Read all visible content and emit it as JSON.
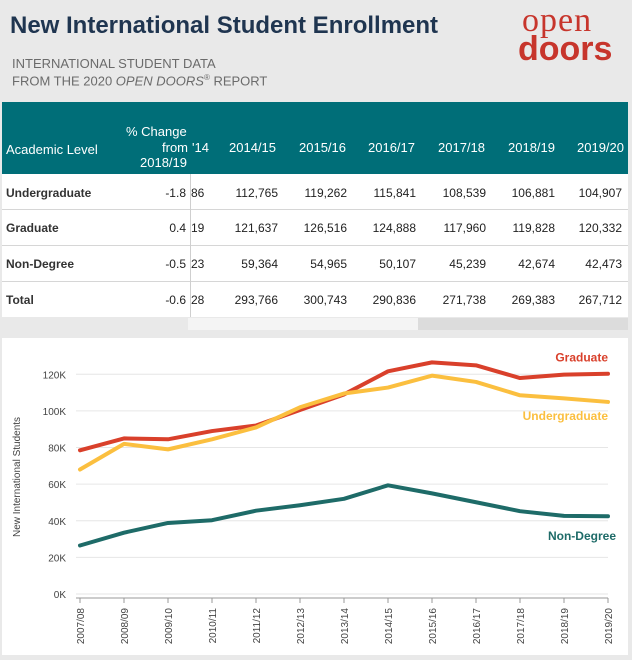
{
  "header": {
    "title": "New International Student Enrollment",
    "subtitle_line1": "INTERNATIONAL STUDENT DATA",
    "subtitle_line2_prefix": "FROM THE 2020 ",
    "subtitle_line2_italic": "OPEN DOORS",
    "subtitle_line2_reg": "®",
    "subtitle_line2_suffix": " REPORT",
    "logo_top": "open",
    "logo_bottom": "doors"
  },
  "table": {
    "col_academic": "Academic Level",
    "col_change_1": "% Change",
    "col_change_2": "from",
    "col_change_3": "2018/19",
    "col_partial": "'14",
    "years": [
      "2014/15",
      "2015/16",
      "2016/17",
      "2017/18",
      "2018/19",
      "2019/20"
    ],
    "rows": [
      {
        "label": "Undergraduate",
        "change": "-1.8",
        "partial": "86",
        "values": [
          "112,765",
          "119,262",
          "115,841",
          "108,539",
          "106,881",
          "104,907"
        ]
      },
      {
        "label": "Graduate",
        "change": "0.4",
        "partial": "19",
        "values": [
          "121,637",
          "126,516",
          "124,888",
          "117,960",
          "119,828",
          "120,332"
        ]
      },
      {
        "label": "Non-Degree",
        "change": "-0.5",
        "partial": "23",
        "values": [
          "59,364",
          "54,965",
          "50,107",
          "45,239",
          "42,674",
          "42,473"
        ]
      },
      {
        "label": "Total",
        "change": "-0.6",
        "partial": "28",
        "values": [
          "293,766",
          "300,743",
          "290,836",
          "271,738",
          "269,383",
          "267,712"
        ]
      }
    ]
  },
  "colors": {
    "graduate": "#d9402b",
    "undergraduate": "#fbbf3f",
    "nondegree": "#1e6b68",
    "header_bg": "#006e78",
    "title": "#1f3550",
    "logo": "#c7352c"
  },
  "chart_data": {
    "type": "line",
    "ylabel": "New International Students",
    "xlabel": "",
    "ylim": [
      0,
      130000
    ],
    "yticks": [
      0,
      20000,
      40000,
      60000,
      80000,
      100000,
      120000
    ],
    "ytick_labels": [
      "0K",
      "20K",
      "40K",
      "60K",
      "80K",
      "100K",
      "120K"
    ],
    "categories": [
      "2007/08",
      "2008/09",
      "2009/10",
      "2010/11",
      "2011/12",
      "2012/13",
      "2013/14",
      "2014/15",
      "2015/16",
      "2016/17",
      "2017/18",
      "2018/19",
      "2019/20"
    ],
    "series": [
      {
        "name": "Graduate",
        "key": "graduate",
        "values": [
          78500,
          85000,
          84500,
          89000,
          92000,
          100500,
          109000,
          121637,
          126516,
          124888,
          117960,
          119828,
          120332
        ]
      },
      {
        "name": "Undergraduate",
        "key": "undergraduate",
        "values": [
          68000,
          82000,
          79000,
          84500,
          91000,
          102000,
          109500,
          112765,
          119262,
          115841,
          108539,
          106881,
          104907
        ]
      },
      {
        "name": "Non-Degree",
        "key": "nondegree",
        "values": [
          26500,
          33500,
          38800,
          40300,
          45500,
          48500,
          52000,
          59364,
          54965,
          50107,
          45239,
          42674,
          42473
        ]
      }
    ],
    "grid": true,
    "legend": "inline-right"
  }
}
